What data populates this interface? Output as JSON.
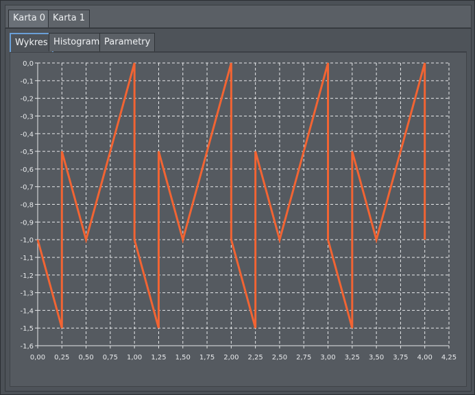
{
  "outer_tabs": [
    {
      "label": "Karta 0",
      "active": true
    },
    {
      "label": "Karta 1",
      "active": false
    }
  ],
  "inner_tabs": [
    {
      "label": "Wykres",
      "active": true
    },
    {
      "label": "Histogram",
      "active": false
    },
    {
      "label": "Parametry",
      "active": false
    }
  ],
  "colors": {
    "series": "#f26433",
    "grid": "#e6e8ea",
    "plot_bg": "#555a60"
  },
  "chart_data": {
    "type": "line",
    "title": "",
    "xlabel": "",
    "ylabel": "",
    "xlim": [
      0.0,
      4.25
    ],
    "ylim": [
      -1.6,
      0.0
    ],
    "grid": true,
    "x_ticks": [
      "0,00",
      "0,25",
      "0,50",
      "0,75",
      "1,00",
      "1,25",
      "1,50",
      "1,75",
      "2,00",
      "2,25",
      "2,50",
      "2,75",
      "3,00",
      "3,25",
      "3,50",
      "3,75",
      "4,00",
      "4,25"
    ],
    "y_ticks": [
      "0,0",
      "-0,1",
      "-0,2",
      "-0,3",
      "-0,4",
      "-0,5",
      "-0,6",
      "-0,7",
      "-0,8",
      "-0,9",
      "-1,0",
      "-1,1",
      "-1,2",
      "-1,3",
      "-1,4",
      "-1,5",
      "-1,6"
    ],
    "series": [
      {
        "points": [
          [
            0.0,
            -1.0
          ],
          [
            0.25,
            -1.5
          ],
          [
            0.25,
            -0.5
          ],
          [
            0.5,
            -1.0
          ],
          [
            1.0,
            0.0
          ],
          [
            1.0,
            -1.0
          ],
          [
            1.25,
            -1.5
          ],
          [
            1.25,
            -0.5
          ],
          [
            1.5,
            -1.0
          ],
          [
            2.0,
            0.0
          ],
          [
            2.0,
            -1.0
          ],
          [
            2.25,
            -1.5
          ],
          [
            2.25,
            -0.5
          ],
          [
            2.5,
            -1.0
          ],
          [
            3.0,
            0.0
          ],
          [
            3.0,
            -1.0
          ],
          [
            3.25,
            -1.5
          ],
          [
            3.25,
            -0.5
          ],
          [
            3.5,
            -1.0
          ],
          [
            4.0,
            0.0
          ],
          [
            4.0,
            -1.0
          ]
        ]
      }
    ]
  }
}
